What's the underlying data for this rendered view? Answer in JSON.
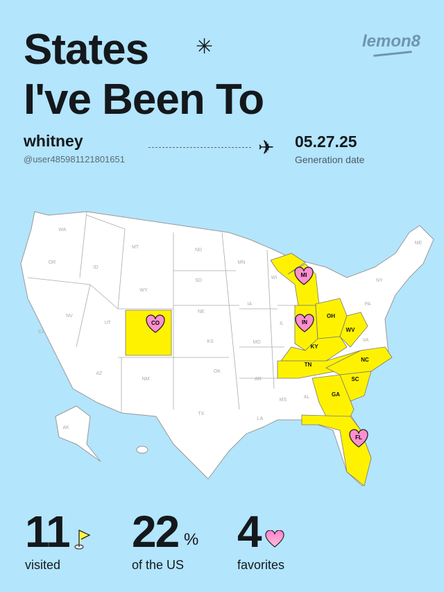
{
  "header": {
    "title_line1": "States",
    "title_line2": "I've Been To",
    "logo": "lemon8"
  },
  "user": {
    "name": "whitney",
    "handle": "@user485981121801651"
  },
  "date": {
    "value": "05.27.25",
    "label": "Generation date"
  },
  "colors": {
    "background": "#b3e5fc",
    "visited": "#fff200",
    "land": "#ffffff",
    "favorite": "#ff8fd0"
  },
  "map": {
    "visited": [
      "CO",
      "MI",
      "IN",
      "OH",
      "KY",
      "WV",
      "TN",
      "NC",
      "SC",
      "GA",
      "FL"
    ],
    "favorites": [
      "CO",
      "MI",
      "IN",
      "FL"
    ],
    "labels": [
      "WA",
      "OR",
      "CA",
      "ID",
      "NV",
      "MT",
      "WY",
      "UT",
      "AZ",
      "NM",
      "ND",
      "SD",
      "NE",
      "KS",
      "OK",
      "TX",
      "MN",
      "IA",
      "MO",
      "AR",
      "LA",
      "WI",
      "IL",
      "MS",
      "AL",
      "NY",
      "PA",
      "VA",
      "ME",
      "AK",
      "OH",
      "KY",
      "WV",
      "TN",
      "NC",
      "SC",
      "GA"
    ]
  },
  "stats": [
    {
      "value": "11",
      "label": "visited",
      "icon": "flag-icon"
    },
    {
      "value": "22",
      "unit": "%",
      "label": "of the US"
    },
    {
      "value": "4",
      "label": "favorites",
      "icon": "heart-icon"
    }
  ]
}
